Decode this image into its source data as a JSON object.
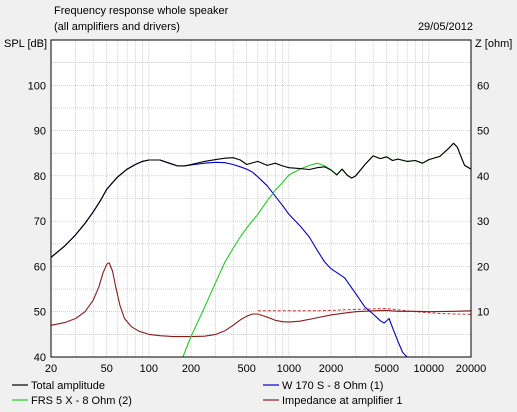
{
  "chart_data": {
    "type": "line",
    "title": "Frequency response whole speaker",
    "subtitle": "(all amplifiers and drivers)",
    "date": "29/05/2012",
    "ylabel": "SPL [dB]",
    "y2label": "Z [ohm]",
    "x_scale": "log",
    "xlim": [
      20,
      20000
    ],
    "ylim": [
      40,
      110
    ],
    "y2lim": [
      0,
      70
    ],
    "x_ticks": [
      20,
      50,
      100,
      200,
      500,
      1000,
      2000,
      5000,
      10000,
      20000
    ],
    "x_tick_labels": [
      "20",
      "50",
      "100",
      "200",
      "500",
      "1000",
      "2000",
      "5000",
      "10000",
      "20000"
    ],
    "y_ticks": [
      40,
      50,
      60,
      70,
      80,
      90,
      100
    ],
    "y_tick_labels": [
      "40",
      "50",
      "60",
      "70",
      "80",
      "90",
      "100"
    ],
    "y2_ticks": [
      10,
      20,
      30,
      40,
      50,
      60
    ],
    "y2_tick_labels": [
      "10",
      "20",
      "30",
      "40",
      "50",
      "60"
    ],
    "grid": true,
    "legend_position": "bottom",
    "series": [
      {
        "name": "Total amplitude",
        "color": "#000000",
        "axis": "left",
        "x": [
          20,
          25,
          30,
          35,
          40,
          45,
          50,
          55,
          60,
          70,
          80,
          90,
          100,
          120,
          140,
          160,
          180,
          200,
          250,
          300,
          350,
          400,
          450,
          500,
          600,
          700,
          800,
          900,
          1000,
          1200,
          1400,
          1600,
          1800,
          2000,
          2200,
          2400,
          2600,
          2800,
          3000,
          3500,
          4000,
          4500,
          5000,
          5500,
          6000,
          7000,
          8000,
          9000,
          10000,
          12000,
          14000,
          15000,
          16000,
          17000,
          18000,
          20000
        ],
        "y": [
          62,
          64.5,
          67,
          69.5,
          72,
          74.5,
          77,
          78.5,
          79.8,
          81.5,
          82.5,
          83.2,
          83.5,
          83.5,
          82.8,
          82.2,
          82.2,
          82.5,
          83.2,
          83.6,
          83.9,
          84,
          83.5,
          82.5,
          83.2,
          82.3,
          82.8,
          82.2,
          81.8,
          81.6,
          81.4,
          81.8,
          82,
          81.3,
          80.2,
          81.5,
          80.2,
          79.5,
          80,
          82.5,
          84.4,
          83.8,
          84.2,
          83.4,
          83.7,
          83.2,
          83.4,
          82.8,
          83.6,
          84.3,
          86.2,
          87.2,
          86.3,
          84.2,
          82.3,
          81.5
        ]
      },
      {
        "name": "W 170 S - 8 Ohm (1)",
        "color": "#0000cc",
        "axis": "left",
        "x": [
          20,
          25,
          30,
          35,
          40,
          45,
          50,
          55,
          60,
          70,
          80,
          90,
          100,
          120,
          140,
          160,
          180,
          200,
          250,
          300,
          350,
          400,
          450,
          500,
          550,
          600,
          700,
          800,
          900,
          1000,
          1200,
          1400,
          1600,
          1800,
          2000,
          2500,
          3000,
          3500,
          4000,
          4500,
          4800,
          5200,
          5500,
          6000,
          6500,
          7000,
          8000,
          10000,
          15000,
          20000
        ],
        "y": [
          62,
          64.5,
          67,
          69.5,
          72,
          74.5,
          77,
          78.5,
          79.8,
          81.5,
          82.5,
          83.2,
          83.5,
          83.5,
          82.8,
          82.2,
          82.2,
          82.4,
          82.8,
          83,
          82.9,
          82.5,
          82,
          81.5,
          80.8,
          79.8,
          77.8,
          75.5,
          73.5,
          71.5,
          69,
          66.5,
          63.5,
          61,
          59.5,
          57.5,
          54,
          51,
          49.5,
          48,
          47.5,
          48.5,
          46.5,
          43.5,
          41,
          40,
          40,
          40,
          40,
          40
        ]
      },
      {
        "name": "FRS 5 X - 8 Ohm (2)",
        "color": "#22cc22",
        "axis": "left",
        "x": [
          20,
          50,
          100,
          150,
          175,
          200,
          250,
          300,
          350,
          400,
          450,
          500,
          600,
          700,
          800,
          900,
          1000,
          1200,
          1400,
          1600,
          1800,
          2000,
          2200,
          2400,
          2600,
          2800,
          3000,
          3500,
          4000,
          4500,
          5000,
          5500,
          6000,
          7000,
          8000,
          9000,
          10000,
          12000,
          14000,
          15000,
          16000,
          17000,
          18000,
          20000
        ],
        "y": [
          40,
          40,
          40,
          40,
          40,
          44.5,
          51,
          56.5,
          61,
          64,
          66.5,
          68.5,
          71.5,
          74.5,
          76.8,
          78.5,
          80.2,
          81.5,
          82.3,
          82.8,
          82.2,
          81.3,
          80.3,
          81.5,
          80.2,
          79.5,
          80,
          82.5,
          84.4,
          83.8,
          84.2,
          83.4,
          83.7,
          83.2,
          83.4,
          82.8,
          83.6,
          84.3,
          86.2,
          87.2,
          86.3,
          84.2,
          82.3,
          81.5
        ]
      },
      {
        "name": "Impedance at amplifier 1",
        "color": "#8b1a1a",
        "axis": "right",
        "x": [
          20,
          25,
          30,
          35,
          40,
          44,
          47,
          50,
          52,
          55,
          58,
          62,
          67,
          75,
          85,
          100,
          120,
          150,
          200,
          250,
          300,
          350,
          400,
          450,
          500,
          550,
          600,
          700,
          800,
          900,
          1000,
          1200,
          1500,
          2000,
          2500,
          3000,
          4000,
          5000,
          6000,
          8000,
          10000,
          15000,
          20000
        ],
        "y": [
          7,
          7.6,
          8.5,
          10,
          12.5,
          15.5,
          18.5,
          20.5,
          20.8,
          19,
          15.5,
          11.5,
          8.5,
          6.7,
          5.7,
          5,
          4.7,
          4.5,
          4.5,
          4.6,
          5,
          5.8,
          7,
          8.2,
          9,
          9.5,
          9.5,
          8.8,
          8.1,
          7.8,
          7.7,
          7.9,
          8.5,
          9.3,
          9.7,
          10,
          10.2,
          10.3,
          10.1,
          10.1,
          10,
          10.1,
          10.2
        ]
      }
    ],
    "dashed_series": [
      {
        "color": "#cc3333",
        "axis": "right",
        "x": [
          600,
          700,
          800,
          1000,
          1500,
          2000,
          3000,
          5000,
          8000,
          12000,
          20000
        ],
        "y": [
          10.2,
          10.2,
          10.2,
          10.2,
          10.2,
          10.3,
          10.5,
          10.7,
          10,
          9.6,
          9.4
        ]
      }
    ]
  }
}
